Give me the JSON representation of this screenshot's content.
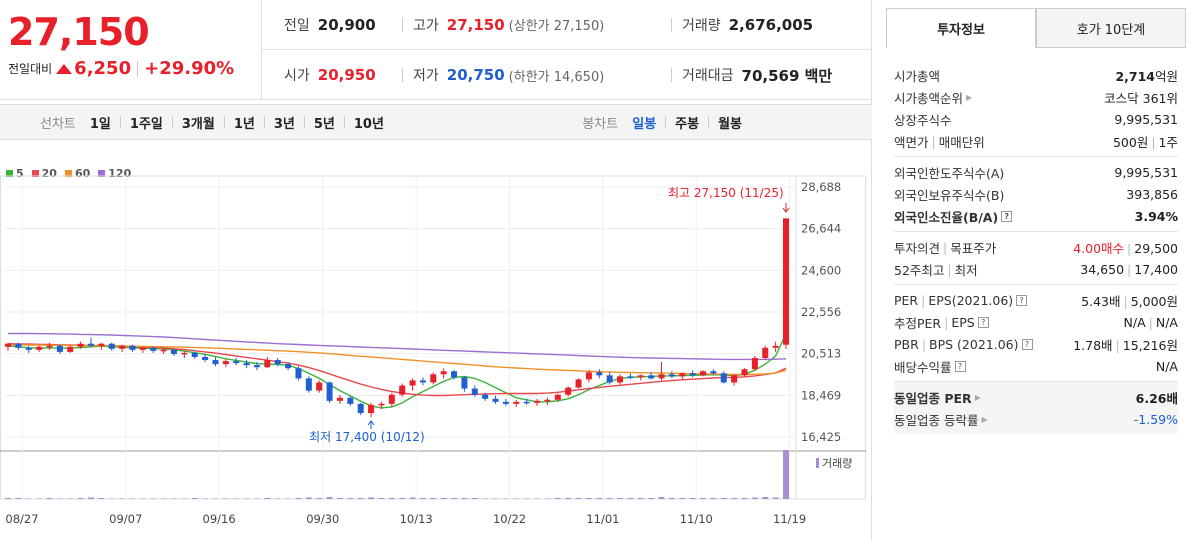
{
  "price": {
    "current": "27,150",
    "change_label": "전일대비",
    "change": "6,250",
    "change_pct": "+29.90%"
  },
  "summary": {
    "prev_label": "전일",
    "prev": "20,900",
    "high_label": "고가",
    "high": "27,150",
    "high_sub": "(상한가 27,150)",
    "volume_label": "거래량",
    "volume": "2,676,005",
    "open_label": "시가",
    "open": "20,950",
    "low_label": "저가",
    "low": "20,750",
    "low_sub": "(하한가 14,650)",
    "amount_label": "거래대금",
    "amount": "70,569 백만"
  },
  "toolbar": {
    "line_label": "선차트",
    "line_items": [
      "1일",
      "1주일",
      "3개월",
      "1년",
      "3년",
      "5년",
      "10년"
    ],
    "candle_label": "봉차트",
    "candle_items": [
      "일봉",
      "주봉",
      "월봉"
    ],
    "active_candle": "일봉"
  },
  "legend": [
    {
      "label": "5",
      "color": "#3cb43c"
    },
    {
      "label": "20",
      "color": "#e8474e"
    },
    {
      "label": "60",
      "color": "#f0912a"
    },
    {
      "label": "120",
      "color": "#9a6fd0"
    }
  ],
  "chart_data": {
    "type": "candlestick",
    "y_ticks": [
      "28,688",
      "26,644",
      "24,600",
      "22,556",
      "20,513",
      "18,469",
      "16,425"
    ],
    "x_ticks": [
      "08/27",
      "09/07",
      "09/16",
      "09/30",
      "10/13",
      "10/22",
      "11/01",
      "11/10",
      "11/19"
    ],
    "ylim": [
      16425,
      28688
    ],
    "max_annotation": "최고 27,150 (11/25)",
    "min_annotation": "최저 17,400 (10/12)",
    "volume_label": "거래량",
    "candles": [
      [
        20850,
        21050,
        20650,
        21000
      ],
      [
        21000,
        21050,
        20700,
        20800
      ],
      [
        20800,
        20900,
        20550,
        20700
      ],
      [
        20700,
        20900,
        20600,
        20850
      ],
      [
        20850,
        21050,
        20700,
        20900
      ],
      [
        20900,
        20950,
        20500,
        20600
      ],
      [
        20600,
        20900,
        20550,
        20850
      ],
      [
        20850,
        21100,
        20750,
        21000
      ],
      [
        21000,
        21300,
        20850,
        20900
      ],
      [
        20900,
        21050,
        20700,
        21000
      ],
      [
        21000,
        21050,
        20650,
        20750
      ],
      [
        20750,
        20950,
        20600,
        20900
      ],
      [
        20900,
        20950,
        20600,
        20700
      ],
      [
        20700,
        20850,
        20550,
        20800
      ],
      [
        20800,
        20850,
        20550,
        20650
      ],
      [
        20650,
        20800,
        20500,
        20700
      ],
      [
        20700,
        20750,
        20400,
        20500
      ],
      [
        20500,
        20650,
        20300,
        20550
      ],
      [
        20550,
        20600,
        20250,
        20350
      ],
      [
        20350,
        20500,
        20100,
        20200
      ],
      [
        20200,
        20350,
        19900,
        20000
      ],
      [
        20000,
        20250,
        19850,
        20150
      ],
      [
        20150,
        20300,
        19950,
        20050
      ],
      [
        20050,
        20200,
        19800,
        19950
      ],
      [
        19950,
        20100,
        19700,
        19850
      ],
      [
        19850,
        20350,
        19800,
        20200
      ],
      [
        20200,
        20300,
        19900,
        20000
      ],
      [
        20000,
        20100,
        19700,
        19800
      ],
      [
        19800,
        19900,
        19200,
        19300
      ],
      [
        19300,
        19400,
        18600,
        18700
      ],
      [
        18700,
        19200,
        18600,
        19100
      ],
      [
        19100,
        19150,
        18100,
        18200
      ],
      [
        18200,
        18500,
        18050,
        18350
      ],
      [
        18350,
        18450,
        17950,
        18050
      ],
      [
        18050,
        18100,
        17500,
        17600
      ],
      [
        17600,
        18100,
        17400,
        18000
      ],
      [
        18000,
        18150,
        17800,
        18050
      ],
      [
        18050,
        18600,
        17900,
        18500
      ],
      [
        18500,
        19050,
        18400,
        18950
      ],
      [
        18950,
        19300,
        18700,
        19200
      ],
      [
        19200,
        19350,
        18950,
        19100
      ],
      [
        19100,
        19600,
        19000,
        19500
      ],
      [
        19500,
        19800,
        19300,
        19650
      ],
      [
        19650,
        19700,
        19250,
        19350
      ],
      [
        19350,
        19400,
        18650,
        18800
      ],
      [
        18800,
        18950,
        18400,
        18500
      ],
      [
        18500,
        18600,
        18200,
        18300
      ],
      [
        18300,
        18450,
        18050,
        18150
      ],
      [
        18150,
        18300,
        17950,
        18050
      ],
      [
        18050,
        18250,
        17900,
        18150
      ],
      [
        18150,
        18300,
        18000,
        18100
      ],
      [
        18100,
        18300,
        17950,
        18200
      ],
      [
        18200,
        18350,
        18000,
        18250
      ],
      [
        18250,
        18550,
        18150,
        18500
      ],
      [
        18500,
        18900,
        18400,
        18850
      ],
      [
        18850,
        19300,
        18800,
        19250
      ],
      [
        19250,
        19700,
        19100,
        19600
      ],
      [
        19600,
        19750,
        19300,
        19450
      ],
      [
        19450,
        19600,
        19000,
        19100
      ],
      [
        19100,
        19500,
        19000,
        19400
      ],
      [
        19400,
        19550,
        19250,
        19350
      ],
      [
        19350,
        19500,
        19200,
        19450
      ],
      [
        19450,
        19600,
        19250,
        19300
      ],
      [
        19300,
        20100,
        19200,
        19500
      ],
      [
        19500,
        19650,
        19300,
        19400
      ],
      [
        19400,
        19600,
        19250,
        19550
      ],
      [
        19550,
        19700,
        19350,
        19450
      ],
      [
        19450,
        19700,
        19400,
        19650
      ],
      [
        19650,
        19750,
        19450,
        19550
      ],
      [
        19550,
        19650,
        19050,
        19100
      ],
      [
        19100,
        19500,
        18950,
        19450
      ],
      [
        19450,
        19800,
        19400,
        19750
      ],
      [
        19750,
        20400,
        19700,
        20300
      ],
      [
        20300,
        20900,
        20200,
        20800
      ],
      [
        20800,
        21100,
        20600,
        20900
      ],
      [
        20950,
        27150,
        20750,
        27150
      ]
    ],
    "ma": {
      "ma5": [
        20900,
        20850,
        20800,
        20780,
        20800,
        20780,
        20790,
        20810,
        20850,
        20880,
        20850,
        20830,
        20800,
        20780,
        20760,
        20740,
        20700,
        20640,
        20560,
        20480,
        20370,
        20260,
        20180,
        20100,
        20020,
        20000,
        19980,
        19950,
        19780,
        19550,
        19300,
        19000,
        18700,
        18450,
        18180,
        17950,
        17850,
        17900,
        18100,
        18400,
        18650,
        18900,
        19150,
        19350,
        19400,
        19300,
        19100,
        18850,
        18600,
        18350,
        18250,
        18150,
        18150,
        18200,
        18300,
        18500,
        18750,
        18950,
        19150,
        19300,
        19350,
        19380,
        19400,
        19420,
        19420,
        19440,
        19450,
        19460,
        19480,
        19460,
        19430,
        19500,
        19700,
        20000,
        20400,
        21500
      ],
      "ma20": [
        21000,
        20990,
        20980,
        20970,
        20960,
        20950,
        20940,
        20930,
        20920,
        20910,
        20900,
        20880,
        20860,
        20840,
        20820,
        20790,
        20750,
        20710,
        20660,
        20600,
        20540,
        20470,
        20400,
        20330,
        20260,
        20190,
        20120,
        20050,
        19950,
        19830,
        19680,
        19520,
        19350,
        19180,
        19020,
        18880,
        18760,
        18660,
        18580,
        18520,
        18480,
        18460,
        18460,
        18480,
        18500,
        18520,
        18540,
        18550,
        18560,
        18560,
        18560,
        18560,
        18580,
        18620,
        18680,
        18740,
        18800,
        18860,
        18910,
        18960,
        19010,
        19060,
        19110,
        19150,
        19190,
        19230,
        19260,
        19290,
        19320,
        19340,
        19350,
        19380,
        19420,
        19490,
        19570,
        19800
      ],
      "ma60": [
        20950,
        20950,
        20940,
        20940,
        20930,
        20930,
        20920,
        20920,
        20910,
        20910,
        20900,
        20890,
        20880,
        20870,
        20860,
        20850,
        20840,
        20830,
        20820,
        20800,
        20780,
        20760,
        20740,
        20720,
        20700,
        20680,
        20660,
        20640,
        20610,
        20580,
        20550,
        20510,
        20470,
        20430,
        20390,
        20350,
        20310,
        20270,
        20230,
        20190,
        20150,
        20110,
        20070,
        20030,
        19990,
        19950,
        19910,
        19870,
        19840,
        19810,
        19780,
        19750,
        19730,
        19710,
        19690,
        19670,
        19650,
        19630,
        19610,
        19600,
        19590,
        19580,
        19570,
        19560,
        19550,
        19540,
        19530,
        19520,
        19510,
        19500,
        19490,
        19490,
        19500,
        19520,
        19560,
        19700
      ],
      "ma120": [
        21500,
        21500,
        21500,
        21490,
        21490,
        21480,
        21470,
        21460,
        21450,
        21440,
        21430,
        21410,
        21390,
        21370,
        21350,
        21330,
        21300,
        21270,
        21240,
        21210,
        21180,
        21150,
        21120,
        21090,
        21060,
        21030,
        21000,
        20980,
        20960,
        20940,
        20920,
        20900,
        20880,
        20860,
        20840,
        20820,
        20800,
        20780,
        20760,
        20740,
        20720,
        20700,
        20680,
        20660,
        20640,
        20620,
        20600,
        20580,
        20560,
        20540,
        20520,
        20500,
        20480,
        20460,
        20440,
        20420,
        20400,
        20380,
        20360,
        20340,
        20320,
        20310,
        20300,
        20290,
        20280,
        20270,
        20260,
        20250,
        20240,
        20230,
        20230,
        20230,
        20230,
        20230,
        20240,
        20260
      ]
    },
    "volume": [
      2,
      2,
      1,
      1,
      2,
      1,
      1,
      2,
      3,
      2,
      1,
      1,
      1,
      1,
      1,
      1,
      1,
      1,
      2,
      1,
      1,
      1,
      1,
      1,
      1,
      2,
      1,
      1,
      2,
      3,
      2,
      4,
      2,
      2,
      2,
      3,
      2,
      2,
      2,
      3,
      2,
      2,
      2,
      2,
      2,
      2,
      1,
      1,
      1,
      1,
      1,
      1,
      1,
      2,
      2,
      2,
      2,
      2,
      2,
      2,
      2,
      2,
      2,
      4,
      2,
      2,
      2,
      2,
      2,
      2,
      2,
      2,
      3,
      4,
      3,
      100
    ]
  },
  "info_tabs": [
    "투자정보",
    "호가 10단계"
  ],
  "info": {
    "g1": [
      {
        "k": "시가총액",
        "v_bold": "2,714",
        "v_unit": "억원"
      },
      {
        "k": "시가총액순위",
        "arrow": true,
        "v": "코스닥 361위"
      },
      {
        "k": "상장주식수",
        "v": "9,995,531"
      },
      {
        "k": "액면가",
        "k2": "매매단위",
        "v": "500원",
        "v2": "1주"
      }
    ],
    "g2": [
      {
        "k": "외국인한도주식수(A)",
        "v": "9,995,531"
      },
      {
        "k": "외국인보유주식수(B)",
        "v": "393,856"
      },
      {
        "k": "외국인소진율(B/A)",
        "help": true,
        "v": "3.94%",
        "bold": true
      }
    ],
    "g3": [
      {
        "k": "투자의견",
        "k2": "목표주가",
        "v": "4.00매수",
        "v2": "29,500",
        "v_red": true
      },
      {
        "k": "52주최고",
        "k2": "최저",
        "v": "34,650",
        "v2": "17,400"
      }
    ],
    "g4": [
      {
        "k": "PER",
        "k2": "EPS(2021.06)",
        "help": true,
        "v": "5.43배",
        "v2": "5,000원"
      },
      {
        "k": "추정PER",
        "k2": "EPS",
        "help": true,
        "v": "N/A",
        "v2": "N/A"
      },
      {
        "k": "PBR",
        "k2": "BPS (2021.06)",
        "help": true,
        "v": "1.78배",
        "v2": "15,216원"
      },
      {
        "k": "배당수익률",
        "help": true,
        "v": "N/A"
      }
    ],
    "g5": [
      {
        "k": "동일업종 PER",
        "arrow": true,
        "v": "6.26배",
        "bold": true
      },
      {
        "k": "동일업종 등락률",
        "arrow": true,
        "v": "-1.59%",
        "neg": true
      }
    ]
  }
}
